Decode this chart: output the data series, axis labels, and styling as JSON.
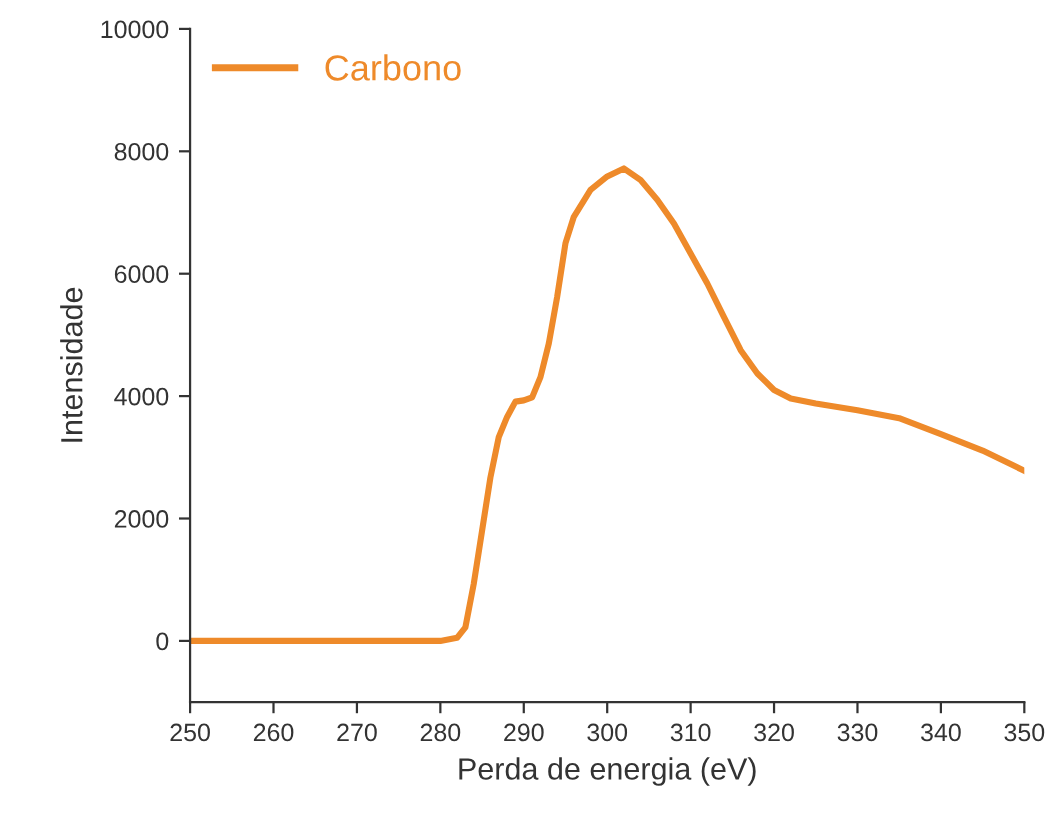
{
  "chart_data": {
    "type": "line",
    "xlabel": "Perda de energia (eV)",
    "ylabel": "Intensidade",
    "xlim": [
      250,
      350
    ],
    "xticks": [
      250,
      260,
      270,
      280,
      290,
      300,
      310,
      320,
      330,
      340,
      350
    ],
    "ylim": [
      -1000,
      10000
    ],
    "yticks": [
      0,
      2000,
      4000,
      6000,
      8000,
      10000
    ],
    "grid": false,
    "legend": "top left",
    "marker": "none",
    "line_style": "solid",
    "series": [
      {
        "name": "Carbono",
        "color": "#ee8a2a",
        "x": [
          250,
          260,
          270,
          280,
          282,
          283,
          284,
          285,
          286,
          287,
          288,
          289,
          290,
          291,
          292,
          293,
          294,
          295,
          296,
          298,
          300,
          302,
          304,
          306,
          308,
          310,
          312,
          314,
          316,
          318,
          320,
          322,
          325,
          330,
          335,
          340,
          345,
          350
        ],
        "values": [
          0,
          0,
          0,
          0,
          50,
          220,
          930,
          1800,
          2670,
          3330,
          3660,
          3910,
          3930,
          3980,
          4310,
          4860,
          5620,
          6500,
          6930,
          7370,
          7590,
          7720,
          7530,
          7210,
          6820,
          6330,
          5840,
          5290,
          4750,
          4370,
          4100,
          3960,
          3880,
          3770,
          3640,
          3380,
          3110,
          2780
        ]
      }
    ]
  }
}
